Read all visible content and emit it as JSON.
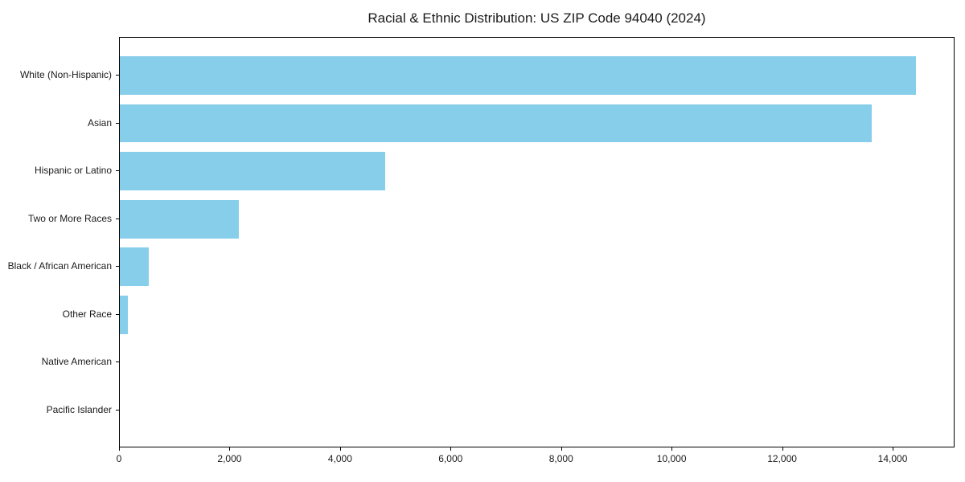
{
  "chart_data": {
    "type": "bar",
    "orientation": "horizontal",
    "title": "Racial & Ethnic Distribution: US ZIP Code 94040 (2024)",
    "categories": [
      "White (Non-Hispanic)",
      "Asian",
      "Hispanic or Latino",
      "Two or More Races",
      "Black / African American",
      "Other Race",
      "Native American",
      "Pacific Islander"
    ],
    "values": [
      14400,
      13600,
      4800,
      2150,
      530,
      150,
      0,
      0
    ],
    "xlabel": "",
    "ylabel": "",
    "xlim": [
      0,
      15120
    ],
    "xticks": [
      0,
      2000,
      4000,
      6000,
      8000,
      10000,
      12000,
      14000
    ],
    "xtick_labels": [
      "0",
      "2,000",
      "4,000",
      "6,000",
      "8,000",
      "10,000",
      "12,000",
      "14,000"
    ],
    "bar_color": "#87CEEB",
    "text_color": "#1a1a1a",
    "axis_color": "#000000",
    "grid": false,
    "legend": "none"
  }
}
